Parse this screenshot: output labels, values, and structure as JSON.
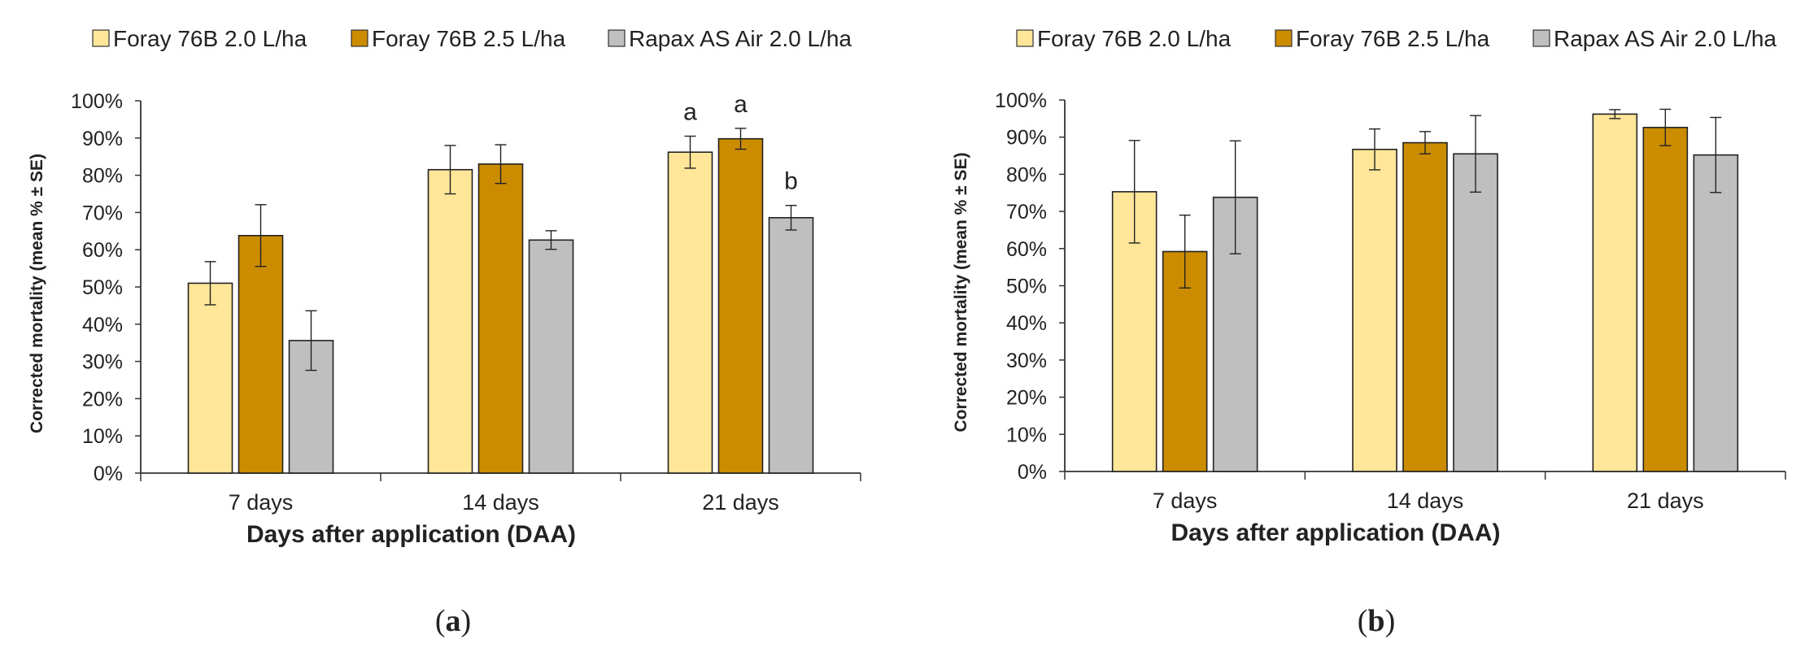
{
  "chart_data": [
    {
      "type": "bar",
      "panel_label": "a",
      "legend": [
        "Foray 76B 2.0 L/ha",
        "Foray 76B 2.5 L/ha",
        "Rapax AS Air 2.0 L/ha"
      ],
      "categories": [
        "7 days",
        "14 days",
        "21 days"
      ],
      "series": [
        {
          "name": "Foray 76B 2.0 L/ha",
          "color": "#FFE699",
          "values": [
            51,
            81.5,
            86.2
          ],
          "se": [
            5.8,
            6.5,
            4.3
          ],
          "letters": [
            "",
            "",
            "a"
          ]
        },
        {
          "name": "Foray 76B 2.5 L/ha",
          "color": "#CC8C00",
          "values": [
            63.8,
            83,
            89.8
          ],
          "se": [
            8.3,
            5.2,
            2.8
          ],
          "letters": [
            "",
            "",
            "a"
          ]
        },
        {
          "name": "Rapax AS Air 2.0 L/ha",
          "color": "#BFBFBF",
          "values": [
            35.6,
            62.6,
            68.6
          ],
          "se": [
            8,
            2.5,
            3.3
          ],
          "letters": [
            "",
            "",
            "b"
          ]
        }
      ],
      "yticks": [
        "0%",
        "10%",
        "20%",
        "30%",
        "40%",
        "50%",
        "60%",
        "70%",
        "80%",
        "90%",
        "100%"
      ],
      "ylim": [
        0,
        100
      ],
      "xlabel": "Days after application (DAA)",
      "ylabel": "Corrected mortality (mean % ± SE)"
    },
    {
      "type": "bar",
      "panel_label": "b",
      "legend": [
        "Foray 76B 2.0 L/ha",
        "Foray 76B 2.5 L/ha",
        "Rapax AS Air 2.0 L/ha"
      ],
      "categories": [
        "7 days",
        "14 days",
        "21 days"
      ],
      "series": [
        {
          "name": "Foray 76B 2.0 L/ha",
          "color": "#FFE699",
          "values": [
            75.3,
            86.7,
            96.2
          ],
          "se": [
            13.8,
            5.5,
            1.2
          ],
          "letters": [
            "",
            "",
            ""
          ]
        },
        {
          "name": "Foray 76B 2.5 L/ha",
          "color": "#CC8C00",
          "values": [
            59.2,
            88.5,
            92.6
          ],
          "se": [
            9.8,
            3,
            4.9
          ],
          "letters": [
            "",
            "",
            ""
          ]
        },
        {
          "name": "Rapax AS Air 2.0 L/ha",
          "color": "#BFBFBF",
          "values": [
            73.8,
            85.5,
            85.2
          ],
          "se": [
            15.2,
            10.3,
            10.1
          ],
          "letters": [
            "",
            "",
            ""
          ]
        }
      ],
      "yticks": [
        "0%",
        "10%",
        "20%",
        "30%",
        "40%",
        "50%",
        "60%",
        "70%",
        "80%",
        "90%",
        "100%"
      ],
      "ylim": [
        0,
        100
      ],
      "xlabel": "Days after application (DAA)",
      "ylabel": "Corrected mortality (mean % ± SE)"
    }
  ]
}
